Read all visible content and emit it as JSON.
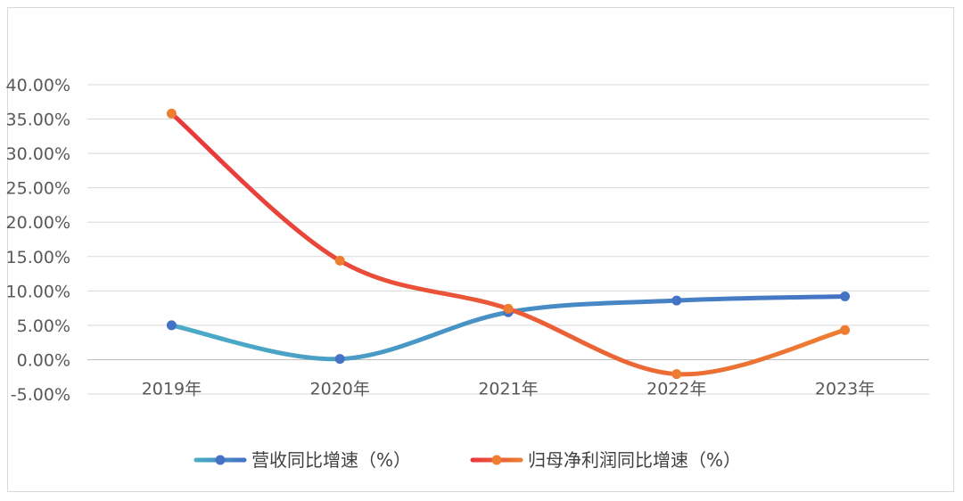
{
  "chart_data": {
    "type": "line",
    "categories": [
      "2019年",
      "2020年",
      "2021年",
      "2022年",
      "2023年"
    ],
    "ylim": [
      -5,
      40
    ],
    "yticks": [
      -5,
      0,
      5,
      10,
      15,
      20,
      25,
      30,
      35,
      40
    ],
    "ytick_labels": [
      "-5.00%",
      "0.00%",
      "5.00%",
      "10.00%",
      "15.00%",
      "20.00%",
      "25.00%",
      "30.00%",
      "35.00%",
      "40.00%"
    ],
    "grid": true,
    "smooth": true,
    "legend_position": "bottom",
    "series": [
      {
        "name": "营收同比增速（%）",
        "values": [
          5.0,
          0.1,
          6.9,
          8.6,
          9.2
        ],
        "color_start": "#4bacc6",
        "color_end": "#4472c4"
      },
      {
        "name": "归母净利润同比增速（%）",
        "values": [
          35.8,
          14.4,
          7.4,
          -2.1,
          4.3
        ],
        "color_start": "#e8383d",
        "color_end": "#ed7d31"
      }
    ]
  }
}
